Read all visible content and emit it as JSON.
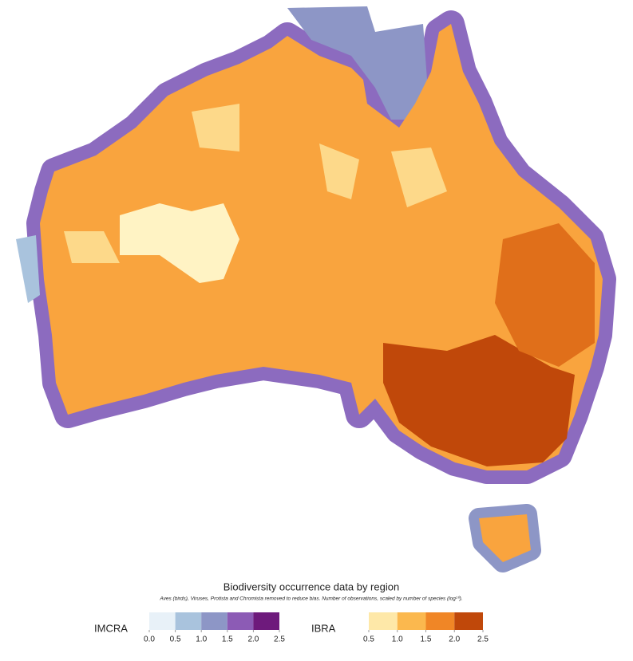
{
  "title": "Biodiversity occurrence data by region",
  "subtitle": "Aves (birds), Viruses, Protista and Chromista removed to reduce bias. Number of observations, scaled by number of species (log¹⁰).",
  "legends": [
    {
      "name": "IMCRA",
      "lim": [
        0,
        2.5
      ],
      "colors": [
        "#e8f1f8",
        "#a9c3dd",
        "#8d96c6",
        "#8c5bb5",
        "#6e1a7c"
      ],
      "ticks": [
        {
          "value": 0,
          "label": "0.0"
        },
        0.5,
        {
          "value": 1,
          "label": "1.0"
        },
        1.5,
        {
          "value": 2,
          "label": "2.0"
        },
        2.5
      ]
    },
    {
      "name": "IBRA",
      "lim": [
        0.5,
        2.5
      ],
      "colors": [
        "#fee8a8",
        "#fbb84e",
        "#f08626",
        "#c0480a"
      ],
      "ticks": [
        0.5,
        {
          "value": 1,
          "label": "1.0"
        },
        1.5,
        {
          "value": 2,
          "label": "2.0"
        },
        2.5
      ]
    }
  ]
}
